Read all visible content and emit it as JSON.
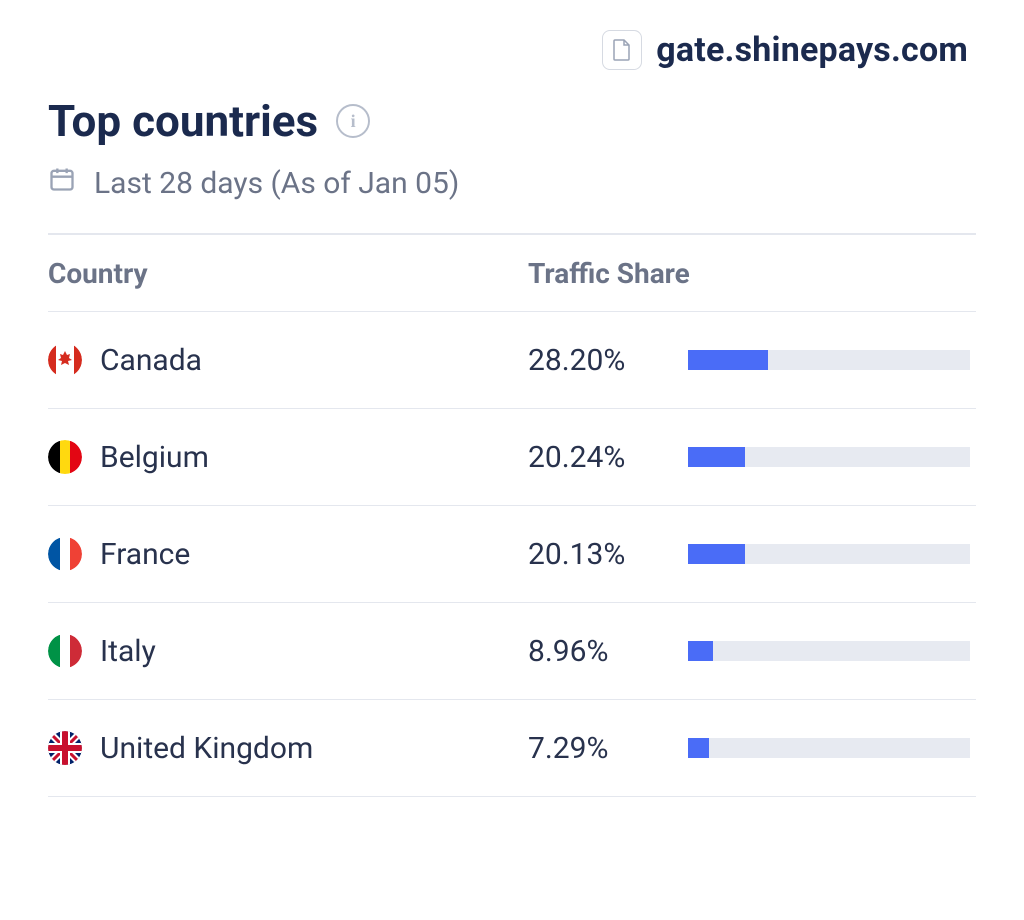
{
  "header": {
    "domain": "gate.shinepays.com",
    "title": "Top countries",
    "date_label": "Last 28 days (As of Jan 05)"
  },
  "columns": {
    "country": "Country",
    "share": "Traffic Share"
  },
  "bar": {
    "fill_color": "#4a6cf7",
    "track_color": "#e7eaf1",
    "max_pct": 100
  },
  "rows": [
    {
      "country": "Canada",
      "share_label": "28.20%",
      "share_pct": 28.2,
      "flag": "canada"
    },
    {
      "country": "Belgium",
      "share_label": "20.24%",
      "share_pct": 20.24,
      "flag": "belgium"
    },
    {
      "country": "France",
      "share_label": "20.13%",
      "share_pct": 20.13,
      "flag": "france"
    },
    {
      "country": "Italy",
      "share_label": "8.96%",
      "share_pct": 8.96,
      "flag": "italy"
    },
    {
      "country": "United Kingdom",
      "share_label": "7.29%",
      "share_pct": 7.29,
      "flag": "uk"
    }
  ]
}
